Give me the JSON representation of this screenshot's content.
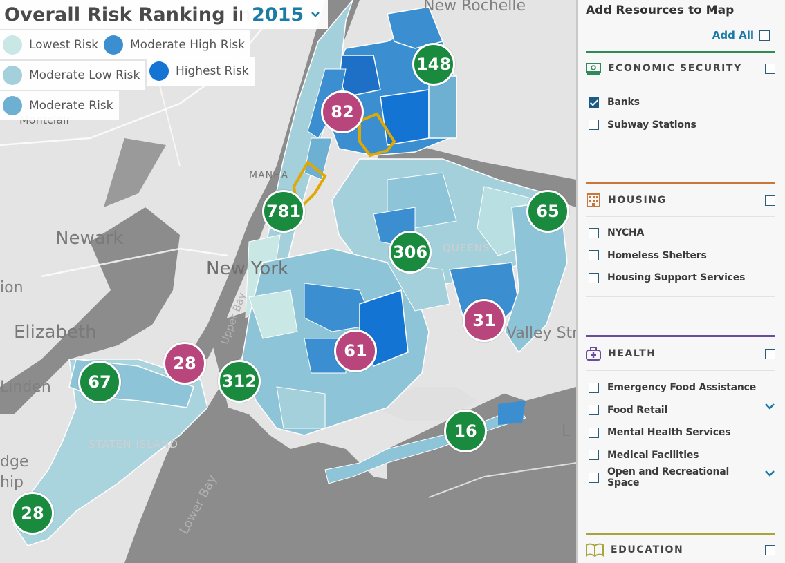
{
  "map": {
    "title": "Overall Risk Ranking in",
    "year": "2015",
    "legend": [
      {
        "label": "Lowest Risk",
        "color": "#c9e7e4"
      },
      {
        "label": "Moderate High Risk",
        "color": "#3b8fd0"
      },
      {
        "label": "Moderate Low Risk",
        "color": "#a4d0dc"
      },
      {
        "label": "Highest Risk",
        "color": "#1474d4"
      },
      {
        "label": "Moderate Risk",
        "color": "#6eb0d2"
      }
    ],
    "place_labels": {
      "new_rochelle": "New Rochelle",
      "montclair": "Montclair",
      "newark": "Newark",
      "new_york": "New York",
      "elizabeth": "Elizabeth",
      "linden": "Linden",
      "valley_stream": "Valley Stre",
      "manhattan": "MANHA",
      "queens": "QUEENS",
      "staten_island": "STATEN ISLAND",
      "lower_bay": "Lower Bay",
      "upper_bay": "Upper Bay",
      "edge_left": "ion",
      "edge_left2": "dge",
      "edge_left3": "hip",
      "edge_right": "L"
    },
    "markers": [
      {
        "value": "148",
        "kind": "green"
      },
      {
        "value": "82",
        "kind": "pink"
      },
      {
        "value": "781",
        "kind": "green"
      },
      {
        "value": "65",
        "kind": "green"
      },
      {
        "value": "306",
        "kind": "green"
      },
      {
        "value": "31",
        "kind": "pink"
      },
      {
        "value": "61",
        "kind": "pink"
      },
      {
        "value": "28",
        "kind": "pink"
      },
      {
        "value": "67",
        "kind": "green"
      },
      {
        "value": "312",
        "kind": "green"
      },
      {
        "value": "16",
        "kind": "green"
      },
      {
        "value": "28",
        "kind": "green"
      }
    ]
  },
  "panel": {
    "title": "Add Resources to Map",
    "add_all": "Add All",
    "sections": [
      {
        "name": "ECONOMIC SECURITY",
        "icon": "money-icon",
        "color": "#2e8b57",
        "items": [
          {
            "label": "Banks",
            "checked": true
          },
          {
            "label": "Subway Stations",
            "checked": false
          }
        ]
      },
      {
        "name": "HOUSING",
        "icon": "building-icon",
        "color": "#c8763a",
        "items": [
          {
            "label": "NYCHA"
          },
          {
            "label": "Homeless Shelters"
          },
          {
            "label": "Housing Support Services"
          }
        ]
      },
      {
        "name": "HEALTH",
        "icon": "medical-kit-icon",
        "color": "#6a4c9c",
        "items": [
          {
            "label": "Emergency Food Assistance"
          },
          {
            "label": "Food Retail"
          },
          {
            "label": "Mental Health Services"
          },
          {
            "label": "Medical Facilities"
          },
          {
            "label": "Open and Recreational Space"
          }
        ]
      },
      {
        "name": "EDUCATION",
        "icon": "book-icon",
        "color": "#a9a53a",
        "items": []
      }
    ]
  }
}
